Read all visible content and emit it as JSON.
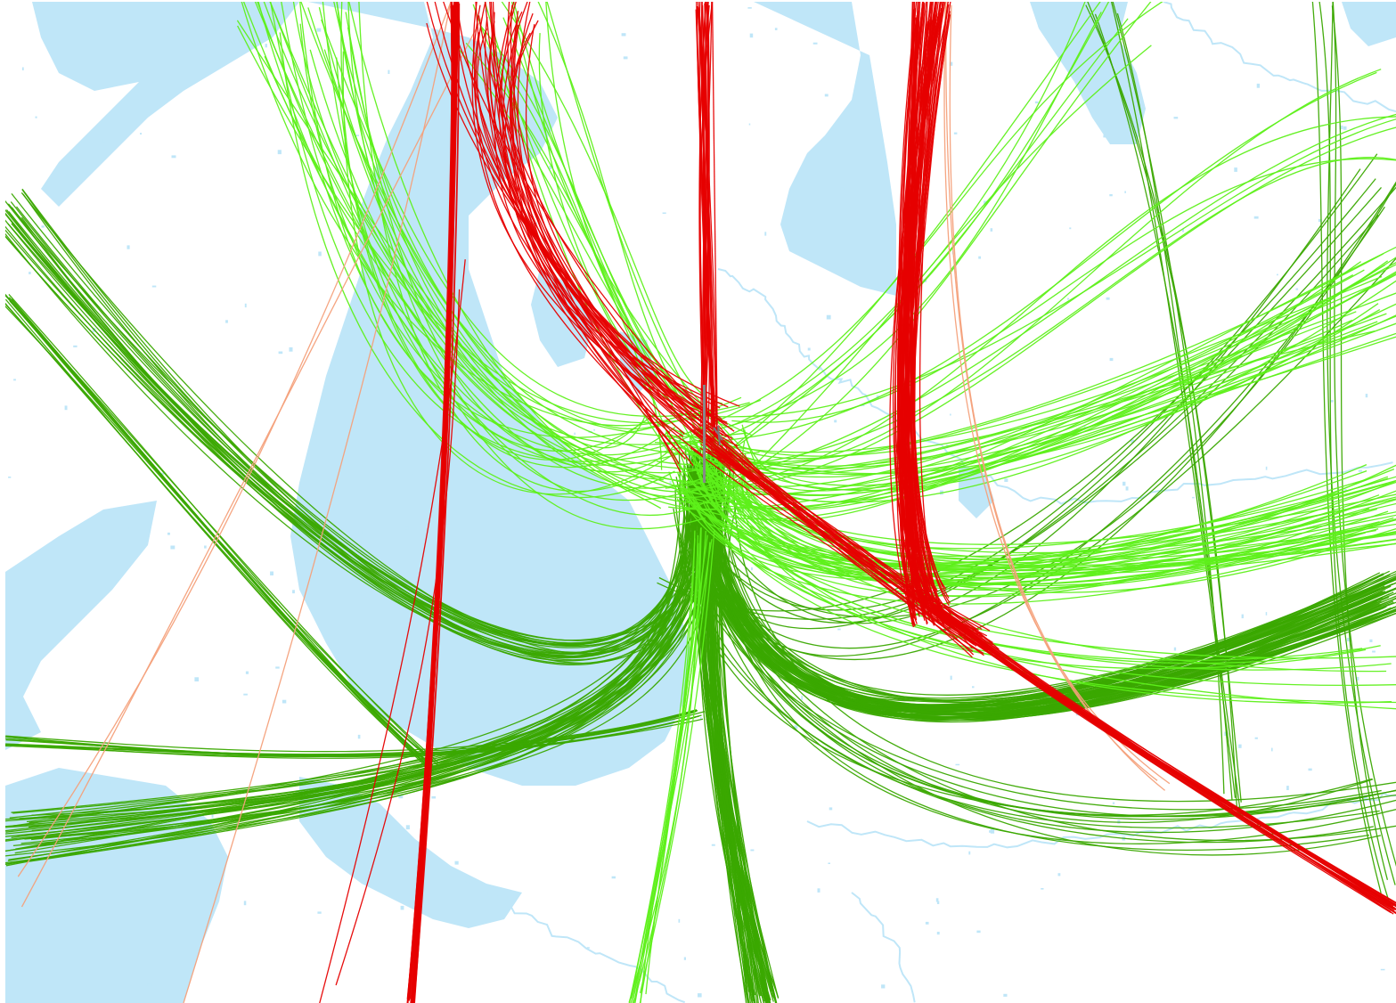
{
  "map": {
    "basemap": {
      "land_color": "#ffffff",
      "water_color": "#bfe6f8"
    },
    "track_layers": [
      {
        "id": "departures-green",
        "color": "#3aa800",
        "description_visible": false
      },
      {
        "id": "departures-lightgreen",
        "color": "#5ef01a",
        "description_visible": false
      },
      {
        "id": "arrivals-red",
        "color": "#e60000",
        "description_visible": false
      },
      {
        "id": "arrivals-salmon",
        "color": "#f4a07a",
        "description_visible": false
      }
    ]
  }
}
